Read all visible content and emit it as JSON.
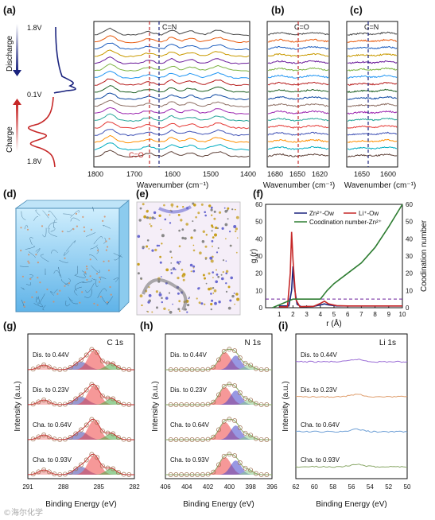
{
  "panel_labels": [
    "(a)",
    "(b)",
    "(c)",
    "(d)",
    "(e)",
    "(f)",
    "(g)",
    "(h)",
    "(i)"
  ],
  "panel_a": {
    "side_labels": {
      "discharge": "Discharge",
      "charge": "Charge",
      "v_top": "1.8V",
      "v_mid": "0.1V",
      "v_bot": "1.8V"
    },
    "xlabel": "Wavenumber (cm⁻¹)",
    "ticks": [
      "1800",
      "1700",
      "1600",
      "1500",
      "1400"
    ],
    "markers": {
      "cn": "C=N",
      "co": "C=O"
    }
  },
  "panel_b": {
    "xlabel": "Wavenumber (cm⁻¹)",
    "ticks": [
      "1680",
      "1650",
      "1620"
    ],
    "marker": "C=O"
  },
  "panel_c": {
    "xlabel": "Wavenumber (cm⁻¹)",
    "ticks": [
      "1650",
      "1600"
    ],
    "marker": "C=N"
  },
  "spectra_colors": [
    "#444444",
    "#e8590c",
    "#1f5fbf",
    "#c99a00",
    "#6a1b9a",
    "#7cb342",
    "#2196f3",
    "#b71c1c",
    "#1b5e20",
    "#0d47a1",
    "#8d6e63",
    "#9c27b0",
    "#26a69a",
    "#e53935",
    "#3f51b5",
    "#ff8f00",
    "#00acc1",
    "#5d4037",
    "#43a047"
  ],
  "chart_data": [
    {
      "type": "line",
      "panel": "(f)",
      "xlabel": "r (Å)",
      "ylabel": "g (r)",
      "ylabel2": "Coodination number",
      "xlim": [
        0,
        10
      ],
      "ylim": [
        0,
        60
      ],
      "ylim2": [
        0,
        60
      ],
      "xticks": [
        "1",
        "2",
        "3",
        "4",
        "5",
        "6",
        "7",
        "8",
        "9",
        "10"
      ],
      "yticks": [
        "0",
        "10",
        "20",
        "30",
        "40",
        "50",
        "60"
      ],
      "legend": [
        "Zn²⁺-Ow",
        "Li⁺-Ow",
        "Coodination number-Zn²⁺"
      ],
      "series": [
        {
          "name": "Zn²⁺-Ow",
          "color": "#1a237e",
          "x": [
            1.0,
            1.7,
            1.9,
            2.0,
            2.1,
            2.3,
            2.6,
            3.5,
            4.0,
            4.3,
            4.6,
            5.2,
            6,
            8,
            10
          ],
          "values": [
            1,
            1,
            10,
            24,
            12,
            2,
            0.6,
            0.8,
            1.6,
            2.2,
            1.6,
            1.0,
            1,
            1,
            1
          ]
        },
        {
          "name": "Li⁺-Ow",
          "color": "#c62828",
          "x": [
            1.0,
            1.6,
            1.8,
            1.9,
            2.0,
            2.2,
            2.5,
            3.5,
            4.0,
            4.3,
            4.6,
            5.2,
            6,
            8,
            10
          ],
          "values": [
            0.5,
            0.5,
            20,
            44,
            28,
            5,
            0.6,
            0.8,
            2.5,
            3.8,
            2.2,
            1.2,
            1,
            1,
            1
          ]
        },
        {
          "name": "Coodination number-Zn²⁺",
          "color": "#2e7d32",
          "x": [
            0.5,
            2.0,
            2.4,
            3.0,
            4.0,
            4.5,
            5,
            6,
            7,
            8,
            9,
            10
          ],
          "values": [
            0,
            5,
            5,
            5,
            5,
            10,
            14,
            20,
            26,
            35,
            47,
            60
          ]
        }
      ],
      "dashed_level": 5
    },
    {
      "type": "line",
      "panel": "(g)",
      "title": "C 1s",
      "xlabel": "Binding Energy (eV)",
      "ylabel": "Intensity (a.u.)",
      "xticks": [
        "291",
        "288",
        "285",
        "282"
      ],
      "traces": [
        "Dis. to 0.44V",
        "Dis. to 0.23V",
        "Cha. to 0.64V",
        "Cha. to 0.93V"
      ]
    },
    {
      "type": "line",
      "panel": "(h)",
      "title": "N 1s",
      "xlabel": "Binding Energy (eV)",
      "ylabel": "Intensity (a.u.)",
      "xticks": [
        "406",
        "404",
        "402",
        "400",
        "398",
        "396"
      ],
      "traces": [
        "Dis. to 0.44V",
        "Dis. to 0.23V",
        "Cha. to 0.64V",
        "Cha. to 0.93V"
      ]
    },
    {
      "type": "line",
      "panel": "(i)",
      "title": "Li 1s",
      "xlabel": "Binding Energy (eV)",
      "ylabel": "Intensity (a.u.)",
      "xticks": [
        "62",
        "60",
        "58",
        "56",
        "54",
        "52",
        "50"
      ],
      "traces": [
        "Dis. to 0.44V",
        "Dis. to 0.23V",
        "Cha. to 0.64V",
        "Cha. to 0.93V"
      ],
      "colors": [
        "#9c6fd6",
        "#e0a070",
        "#6fa0d6",
        "#8aa868"
      ]
    }
  ],
  "watermark": "©海尔化学"
}
